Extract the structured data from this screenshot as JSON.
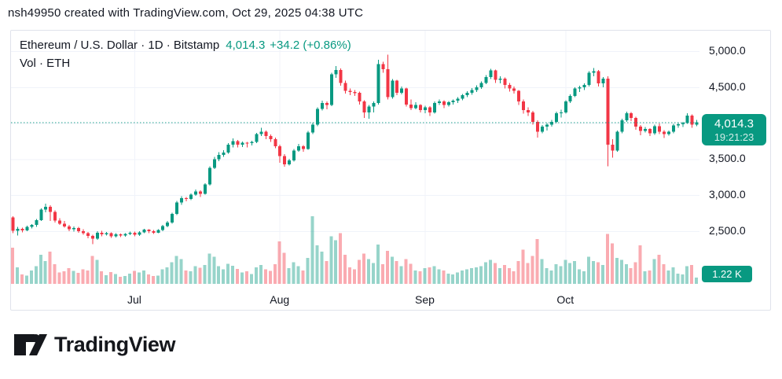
{
  "colors": {
    "accent": "#089981",
    "up": "#089981",
    "down": "#f23645",
    "grid": "#f0f3fa",
    "text": "#131722",
    "border": "#e0e3eb",
    "vol_opacity": 0.42
  },
  "page": {
    "attribution": "nsh49950 created with TradingView.com, Oct 29, 2025 04:38 UTC"
  },
  "chart": {
    "symbol_title": "Ethereum / U.S. Dollar · 1D · Bitstamp",
    "price": "4,014.3",
    "change": "+34.2 (+0.86%)",
    "indicator_label": "Vol · ETH",
    "price_badge": {
      "price": "4,014.3",
      "countdown": "19:21:23"
    },
    "volume_badge": "1.22 K"
  },
  "footer": {
    "logo_text": "TradingView"
  },
  "chart_data": {
    "type": "candlestick",
    "title": "Ethereum / U.S. Dollar · 1D · Bitstamp",
    "symbol": "ETH/USD",
    "interval": "1D",
    "exchange": "Bitstamp",
    "last_price": 4014.3,
    "change": 34.2,
    "change_pct": 0.86,
    "countdown": "19:21:23",
    "volume_series_label": "Vol · ETH",
    "last_volume_label": "1.22 K",
    "price_line": 4014.3,
    "y_axis": [
      {
        "value": 5000,
        "label": "5,000.0"
      },
      {
        "value": 4500,
        "label": "4,500.0"
      },
      {
        "value": 3500,
        "label": "3,500.0"
      },
      {
        "value": 3000,
        "label": "3,000.0"
      },
      {
        "value": 2500,
        "label": "2,500.0"
      }
    ],
    "y_gridlines": [
      5000,
      4500,
      4000,
      3500,
      3000,
      2500
    ],
    "x_ticks": [
      {
        "index": 26,
        "label": "Jul"
      },
      {
        "index": 57,
        "label": "Aug"
      },
      {
        "index": 88,
        "label": "Sep"
      },
      {
        "index": 118,
        "label": "Oct"
      }
    ],
    "candle_fields": [
      "open",
      "high",
      "low",
      "close",
      "volume_k"
    ],
    "candles": [
      [
        2690,
        2705,
        2470,
        2505,
        7.0
      ],
      [
        2505,
        2560,
        2440,
        2535,
        3.2
      ],
      [
        2535,
        2550,
        2485,
        2510,
        1.8
      ],
      [
        2510,
        2575,
        2500,
        2560,
        1.6
      ],
      [
        2560,
        2600,
        2540,
        2585,
        2.6
      ],
      [
        2585,
        2670,
        2560,
        2655,
        3.4
      ],
      [
        2655,
        2815,
        2640,
        2800,
        5.6
      ],
      [
        2800,
        2880,
        2760,
        2840,
        4.4
      ],
      [
        2840,
        2860,
        2640,
        2770,
        6.2
      ],
      [
        2770,
        2790,
        2620,
        2645,
        3.8
      ],
      [
        2645,
        2680,
        2590,
        2605,
        2.2
      ],
      [
        2605,
        2640,
        2550,
        2565,
        2.4
      ],
      [
        2565,
        2590,
        2500,
        2530,
        3.0
      ],
      [
        2530,
        2565,
        2495,
        2545,
        2.5
      ],
      [
        2545,
        2560,
        2480,
        2500,
        2.1
      ],
      [
        2500,
        2530,
        2450,
        2475,
        2.8
      ],
      [
        2475,
        2490,
        2400,
        2435,
        2.6
      ],
      [
        2435,
        2450,
        2320,
        2395,
        5.4
      ],
      [
        2395,
        2500,
        2380,
        2480,
        4.6
      ],
      [
        2480,
        2505,
        2430,
        2455,
        2.4
      ],
      [
        2455,
        2490,
        2440,
        2475,
        1.7
      ],
      [
        2475,
        2485,
        2405,
        2430,
        2.3
      ],
      [
        2430,
        2470,
        2415,
        2455,
        1.9
      ],
      [
        2455,
        2465,
        2420,
        2440,
        1.4
      ],
      [
        2440,
        2475,
        2425,
        2460,
        1.5
      ],
      [
        2460,
        2495,
        2445,
        2480,
        2.0
      ],
      [
        2480,
        2495,
        2430,
        2450,
        2.5
      ],
      [
        2450,
        2500,
        2435,
        2485,
        2.2
      ],
      [
        2485,
        2535,
        2470,
        2520,
        2.6
      ],
      [
        2520,
        2530,
        2475,
        2500,
        1.8
      ],
      [
        2500,
        2515,
        2460,
        2480,
        1.5
      ],
      [
        2480,
        2525,
        2470,
        2515,
        1.6
      ],
      [
        2515,
        2585,
        2500,
        2570,
        2.8
      ],
      [
        2570,
        2640,
        2555,
        2620,
        3.2
      ],
      [
        2620,
        2755,
        2605,
        2740,
        4.2
      ],
      [
        2740,
        2920,
        2725,
        2900,
        5.4
      ],
      [
        2900,
        2985,
        2865,
        2960,
        4.8
      ],
      [
        2960,
        2975,
        2915,
        2945,
        2.6
      ],
      [
        2945,
        3025,
        2930,
        3010,
        2.4
      ],
      [
        3010,
        3080,
        2990,
        3050,
        3.4
      ],
      [
        3050,
        3070,
        2975,
        3020,
        3.1
      ],
      [
        3020,
        3165,
        3005,
        3150,
        3.6
      ],
      [
        3150,
        3400,
        3135,
        3380,
        5.8
      ],
      [
        3380,
        3530,
        3360,
        3500,
        5.2
      ],
      [
        3500,
        3595,
        3470,
        3560,
        3.4
      ],
      [
        3560,
        3625,
        3530,
        3590,
        2.8
      ],
      [
        3590,
        3720,
        3575,
        3700,
        3.9
      ],
      [
        3700,
        3790,
        3665,
        3750,
        3.5
      ],
      [
        3750,
        3765,
        3660,
        3700,
        2.9
      ],
      [
        3700,
        3745,
        3670,
        3730,
        2.2
      ],
      [
        3730,
        3740,
        3660,
        3720,
        2.4
      ],
      [
        3720,
        3755,
        3690,
        3740,
        1.9
      ],
      [
        3740,
        3865,
        3725,
        3850,
        3.2
      ],
      [
        3850,
        3935,
        3820,
        3880,
        3.6
      ],
      [
        3880,
        3895,
        3780,
        3820,
        2.8
      ],
      [
        3820,
        3845,
        3740,
        3780,
        2.5
      ],
      [
        3780,
        3800,
        3650,
        3680,
        3.8
      ],
      [
        3680,
        3700,
        3450,
        3540,
        8.2
      ],
      [
        3540,
        3570,
        3395,
        3430,
        6.0
      ],
      [
        3430,
        3505,
        3410,
        3480,
        3.0
      ],
      [
        3480,
        3640,
        3465,
        3620,
        4.2
      ],
      [
        3620,
        3710,
        3600,
        3680,
        3.4
      ],
      [
        3680,
        3695,
        3605,
        3640,
        2.6
      ],
      [
        3640,
        3890,
        3630,
        3870,
        5.0
      ],
      [
        3870,
        4005,
        3850,
        3980,
        13.0
      ],
      [
        3980,
        4220,
        3960,
        4200,
        7.4
      ],
      [
        4200,
        4310,
        4175,
        4280,
        6.2
      ],
      [
        4280,
        4300,
        4190,
        4250,
        4.4
      ],
      [
        4250,
        4700,
        4235,
        4680,
        9.2
      ],
      [
        4680,
        4790,
        4630,
        4740,
        8.4
      ],
      [
        4740,
        4760,
        4520,
        4560,
        9.8
      ],
      [
        4560,
        4590,
        4410,
        4450,
        5.6
      ],
      [
        4450,
        4480,
        4390,
        4430,
        3.2
      ],
      [
        4430,
        4460,
        4380,
        4420,
        2.8
      ],
      [
        4420,
        4440,
        4260,
        4300,
        4.6
      ],
      [
        4300,
        4320,
        4070,
        4150,
        5.8
      ],
      [
        4150,
        4250,
        4060,
        4230,
        4.8
      ],
      [
        4230,
        4300,
        4150,
        4280,
        4.0
      ],
      [
        4280,
        4880,
        4260,
        4820,
        7.6
      ],
      [
        4820,
        4855,
        4700,
        4750,
        3.8
      ],
      [
        4750,
        4950,
        4330,
        4360,
        6.4
      ],
      [
        4360,
        4610,
        4340,
        4590,
        5.2
      ],
      [
        4590,
        4600,
        4390,
        4420,
        4.4
      ],
      [
        4420,
        4510,
        4400,
        4480,
        3.4
      ],
      [
        4480,
        4495,
        4230,
        4260,
        4.8
      ],
      [
        4260,
        4330,
        4180,
        4210,
        3.9
      ],
      [
        4210,
        4290,
        4190,
        4250,
        2.6
      ],
      [
        4250,
        4265,
        4150,
        4180,
        2.4
      ],
      [
        4180,
        4240,
        4140,
        4220,
        3.0
      ],
      [
        4220,
        4235,
        4100,
        4150,
        3.2
      ],
      [
        4150,
        4300,
        4130,
        4280,
        3.4
      ],
      [
        4280,
        4330,
        4250,
        4300,
        2.8
      ],
      [
        4300,
        4315,
        4210,
        4250,
        2.6
      ],
      [
        4250,
        4305,
        4230,
        4290,
        2.0
      ],
      [
        4290,
        4330,
        4260,
        4310,
        1.8
      ],
      [
        4310,
        4360,
        4280,
        4340,
        2.2
      ],
      [
        4340,
        4405,
        4320,
        4390,
        2.6
      ],
      [
        4390,
        4445,
        4360,
        4420,
        2.8
      ],
      [
        4420,
        4485,
        4395,
        4460,
        3.0
      ],
      [
        4460,
        4525,
        4430,
        4500,
        3.2
      ],
      [
        4500,
        4580,
        4475,
        4560,
        3.4
      ],
      [
        4560,
        4665,
        4540,
        4640,
        4.2
      ],
      [
        4640,
        4755,
        4610,
        4730,
        4.6
      ],
      [
        4730,
        4745,
        4560,
        4600,
        4.0
      ],
      [
        4600,
        4650,
        4550,
        4620,
        3.0
      ],
      [
        4620,
        4635,
        4480,
        4530,
        3.6
      ],
      [
        4530,
        4560,
        4440,
        4480,
        3.0
      ],
      [
        4480,
        4510,
        4410,
        4450,
        2.4
      ],
      [
        4450,
        4460,
        4250,
        4300,
        4.4
      ],
      [
        4300,
        4330,
        4130,
        4180,
        6.6
      ],
      [
        4180,
        4220,
        4100,
        4150,
        4.0
      ],
      [
        4150,
        4170,
        3980,
        4020,
        5.4
      ],
      [
        4020,
        4040,
        3800,
        3880,
        8.6
      ],
      [
        3880,
        3975,
        3860,
        3950,
        4.8
      ],
      [
        3950,
        4000,
        3900,
        3980,
        3.0
      ],
      [
        3980,
        4045,
        3950,
        4020,
        2.6
      ],
      [
        4020,
        4160,
        4000,
        4140,
        3.8
      ],
      [
        4140,
        4185,
        4080,
        4150,
        3.4
      ],
      [
        4150,
        4320,
        4130,
        4300,
        4.6
      ],
      [
        4300,
        4400,
        4280,
        4380,
        4.0
      ],
      [
        4380,
        4500,
        4360,
        4480,
        4.4
      ],
      [
        4480,
        4520,
        4430,
        4500,
        2.8
      ],
      [
        4500,
        4550,
        4460,
        4530,
        2.4
      ],
      [
        4530,
        4720,
        4510,
        4700,
        5.2
      ],
      [
        4700,
        4765,
        4650,
        4720,
        4.4
      ],
      [
        4720,
        4740,
        4510,
        4550,
        4.2
      ],
      [
        4550,
        4640,
        4500,
        4620,
        3.6
      ],
      [
        4620,
        4650,
        3400,
        3700,
        9.6
      ],
      [
        3700,
        3780,
        3520,
        3620,
        7.8
      ],
      [
        3620,
        3900,
        3600,
        3880,
        5.0
      ],
      [
        3880,
        4060,
        3860,
        4040,
        4.6
      ],
      [
        4040,
        4160,
        4020,
        4140,
        3.8
      ],
      [
        4140,
        4155,
        4030,
        4070,
        3.0
      ],
      [
        4070,
        4090,
        3910,
        3950,
        4.2
      ],
      [
        3950,
        3975,
        3830,
        3890,
        7.4
      ],
      [
        3890,
        3945,
        3870,
        3920,
        2.4
      ],
      [
        3920,
        3930,
        3820,
        3860,
        2.6
      ],
      [
        3860,
        3980,
        3840,
        3960,
        4.8
      ],
      [
        3960,
        3995,
        3850,
        3880,
        5.6
      ],
      [
        3880,
        3905,
        3795,
        3850,
        3.8
      ],
      [
        3850,
        3900,
        3825,
        3880,
        2.6
      ],
      [
        3880,
        3990,
        3860,
        3970,
        3.2
      ],
      [
        3970,
        4005,
        3935,
        3985,
        2.0
      ],
      [
        3985,
        4015,
        3945,
        4000,
        1.8
      ],
      [
        4000,
        4135,
        3990,
        4105,
        3.4
      ],
      [
        4105,
        4120,
        3935,
        3980,
        3.6
      ],
      [
        3980,
        4045,
        3955,
        4014.3,
        1.22
      ]
    ]
  }
}
